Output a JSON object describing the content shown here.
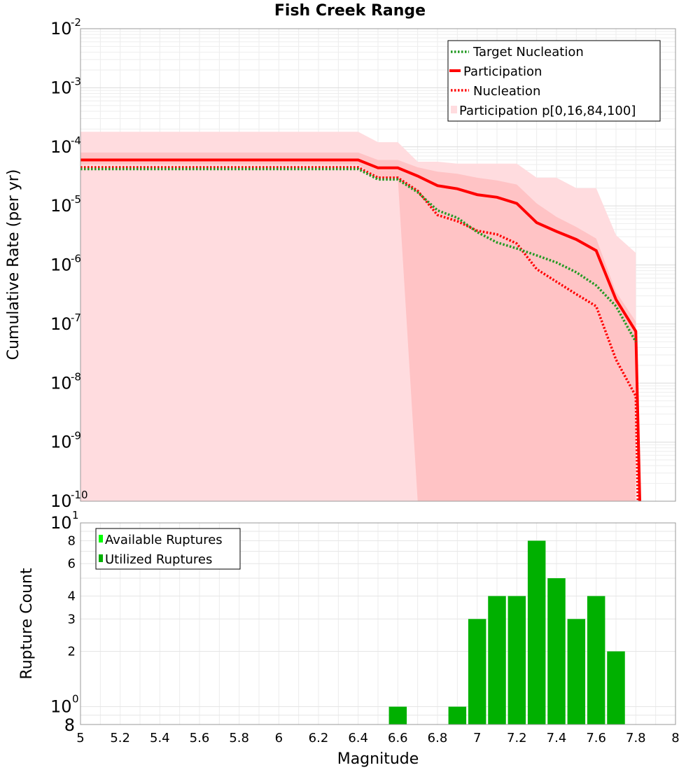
{
  "chart_data": [
    {
      "type": "line",
      "title": "Fish Creek Range",
      "xlabel": "",
      "ylabel": "Cumulative Rate (per yr)",
      "xlim": [
        5,
        8
      ],
      "ylim": [
        1e-10,
        0.01
      ],
      "yscale": "log",
      "ytick_base": "10",
      "ytick_exponents": [
        "-10",
        "-9",
        "-8",
        "-7",
        "-6",
        "-5",
        "-4",
        "-3",
        "-2"
      ],
      "grid": true,
      "legend_position": "top-right",
      "bands": [
        {
          "name": "Participation p[0,16,84,100]",
          "color": "#ffdcdf",
          "x": [
            5.0,
            6.4,
            6.5,
            6.6,
            6.7,
            6.8,
            6.9,
            7.0,
            7.1,
            7.2,
            7.3,
            7.4,
            7.5,
            7.6,
            7.7,
            7.8
          ],
          "low": [
            1e-10,
            1e-10,
            1e-10,
            1e-10,
            1e-10,
            1e-10,
            1e-10,
            1e-10,
            1e-10,
            1e-10,
            1e-10,
            1e-10,
            1e-10,
            1e-10,
            1e-10,
            1e-10
          ],
          "high": [
            0.00018,
            0.00018,
            0.00012,
            0.00012,
            5.6e-05,
            5.6e-05,
            5.2e-05,
            5.2e-05,
            5.2e-05,
            5.2e-05,
            3e-05,
            3e-05,
            2e-05,
            2e-05,
            3.2e-06,
            1.6e-06
          ]
        },
        {
          "name": "",
          "color": "#ffc3c5",
          "x": [
            5.0,
            6.4,
            6.5,
            6.6,
            6.7,
            6.8,
            6.9,
            7.0,
            7.1,
            7.2,
            7.3,
            7.4,
            7.5,
            7.6,
            7.7,
            7.8
          ],
          "low": [
            5e-05,
            5e-05,
            3e-05,
            3e-05,
            1e-10,
            1e-10,
            1e-10,
            1e-10,
            1e-10,
            1e-10,
            1e-10,
            1e-10,
            1e-10,
            1e-10,
            1e-10,
            1e-10
          ],
          "high": [
            8e-05,
            8e-05,
            6e-05,
            6e-05,
            4.5e-05,
            3.8e-05,
            3.5e-05,
            3e-05,
            2.7e-05,
            2.3e-05,
            1.1e-05,
            6.5e-06,
            4.4e-06,
            2.8e-06,
            3.5e-07,
            1.1e-07
          ]
        }
      ],
      "series": [
        {
          "name": "Target Nucleation",
          "color": "#229922",
          "style": "dotted",
          "x": [
            5.0,
            6.4,
            6.5,
            6.6,
            6.7,
            6.8,
            6.9,
            7.0,
            7.1,
            7.2,
            7.3,
            7.4,
            7.5,
            7.6,
            7.7,
            7.8
          ],
          "values": [
            4.2e-05,
            4.2e-05,
            2.8e-05,
            2.8e-05,
            1.7e-05,
            8.4e-06,
            6.3e-06,
            3.6e-06,
            2.4e-06,
            1.9e-06,
            1.45e-06,
            1.1e-06,
            7.5e-07,
            4.5e-07,
            2e-07,
            5e-08
          ]
        },
        {
          "name": "Participation",
          "color": "#ff0000",
          "style": "solid",
          "x": [
            5.0,
            6.4,
            6.5,
            6.6,
            6.7,
            6.8,
            6.9,
            7.0,
            7.1,
            7.2,
            7.3,
            7.4,
            7.5,
            7.6,
            7.7,
            7.8,
            7.82
          ],
          "values": [
            6e-05,
            6e-05,
            4.4e-05,
            4.4e-05,
            3.2e-05,
            2.2e-05,
            1.95e-05,
            1.55e-05,
            1.4e-05,
            1.1e-05,
            5.2e-06,
            3.7e-06,
            2.7e-06,
            1.75e-06,
            2.6e-07,
            7.5e-08,
            1e-10
          ]
        },
        {
          "name": "Nucleation",
          "color": "#ff0000",
          "style": "dotted",
          "x": [
            5.0,
            6.4,
            6.5,
            6.6,
            6.7,
            6.8,
            6.9,
            7.0,
            7.1,
            7.2,
            7.3,
            7.4,
            7.5,
            7.6,
            7.7,
            7.8,
            7.81
          ],
          "values": [
            4.5e-05,
            4.5e-05,
            3e-05,
            3e-05,
            1.8e-05,
            7e-06,
            5.5e-06,
            3.8e-06,
            3.3e-06,
            2.3e-06,
            8.5e-07,
            5.2e-07,
            3.2e-07,
            2e-07,
            2.5e-08,
            6e-09,
            1e-10
          ]
        }
      ]
    },
    {
      "type": "bar",
      "title": "",
      "xlabel": "Magnitude",
      "ylabel": "Rupture Count",
      "xlim": [
        5,
        8
      ],
      "ylim": [
        0.8,
        10
      ],
      "yscale": "log",
      "xticks": [
        "5",
        "5.2",
        "5.4",
        "5.6",
        "5.8",
        "6",
        "6.2",
        "6.4",
        "6.6",
        "6.8",
        "7",
        "7.2",
        "7.4",
        "7.6",
        "7.8",
        "8"
      ],
      "yticks": [
        {
          "value": 10,
          "base": "10",
          "exp": "1"
        },
        {
          "value": 8,
          "label": "8"
        },
        {
          "value": 6,
          "label": "6"
        },
        {
          "value": 4,
          "label": "4"
        },
        {
          "value": 3,
          "label": "3"
        },
        {
          "value": 2,
          "label": "2"
        },
        {
          "value": 1,
          "base": "10",
          "exp": "0"
        },
        {
          "value": 0.8,
          "label": "8"
        }
      ],
      "grid": true,
      "legend_position": "top-left",
      "bar_width": 0.09,
      "legend": [
        {
          "name": "Available Ruptures",
          "color": "#00ff00"
        },
        {
          "name": "Utilized Ruptures",
          "color": "#00b000"
        }
      ],
      "series": [
        {
          "name": "Utilized Ruptures",
          "color": "#00b000",
          "x": [
            6.6,
            6.9,
            7.0,
            7.1,
            7.2,
            7.3,
            7.4,
            7.5,
            7.6,
            7.7
          ],
          "values": [
            1,
            1,
            3,
            4,
            4,
            8,
            5,
            3,
            4,
            2
          ]
        }
      ]
    }
  ]
}
